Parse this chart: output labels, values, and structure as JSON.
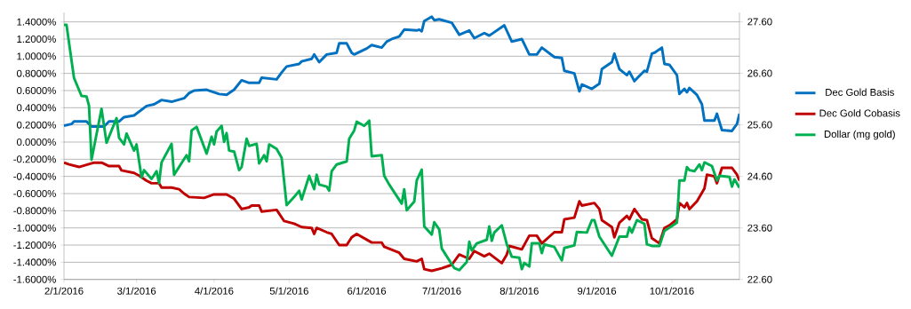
{
  "chart_data": {
    "type": "line",
    "legend": "right",
    "grid": "y",
    "xlim": [
      "2016-02-01",
      "2016-10-28"
    ],
    "xticks": [
      {
        "value": "2016-02-01",
        "label": "2/1/2016"
      },
      {
        "value": "2016-03-01",
        "label": "3/1/2016"
      },
      {
        "value": "2016-04-01",
        "label": "4/1/2016"
      },
      {
        "value": "2016-05-01",
        "label": "5/1/2016"
      },
      {
        "value": "2016-06-01",
        "label": "6/1/2016"
      },
      {
        "value": "2016-07-01",
        "label": "7/1/2016"
      },
      {
        "value": "2016-08-01",
        "label": "8/1/2016"
      },
      {
        "value": "2016-09-01",
        "label": "9/1/2016"
      },
      {
        "value": "2016-10-01",
        "label": "10/1/2016"
      }
    ],
    "ylim": [
      -1.6,
      1.51
    ],
    "yticks": [
      {
        "value": -1.6,
        "label": "-1.6000%"
      },
      {
        "value": -1.4,
        "label": "-1.4000%"
      },
      {
        "value": -1.2,
        "label": "-1.2000%"
      },
      {
        "value": -1.0,
        "label": "-1.0000%"
      },
      {
        "value": -0.8,
        "label": "-0.8000%"
      },
      {
        "value": -0.6,
        "label": "-0.6000%"
      },
      {
        "value": -0.4,
        "label": "-0.4000%"
      },
      {
        "value": -0.2,
        "label": "-0.2000%"
      },
      {
        "value": 0,
        "label": "0.0000%"
      },
      {
        "value": 0.2,
        "label": "0.2000%"
      },
      {
        "value": 0.4,
        "label": "0.4000%"
      },
      {
        "value": 0.6,
        "label": "0.6000%"
      },
      {
        "value": 0.8,
        "label": "0.8000%"
      },
      {
        "value": 1.0,
        "label": "1.0000%"
      },
      {
        "value": 1.2,
        "label": "1.2000%"
      },
      {
        "value": 1.4,
        "label": "1.4000%"
      }
    ],
    "y2lim": [
      22.6,
      27.78
    ],
    "y2ticks": [
      {
        "value": 22.6,
        "label": "22.60"
      },
      {
        "value": 23.6,
        "label": "23.60"
      },
      {
        "value": 24.6,
        "label": "24.60"
      },
      {
        "value": 25.6,
        "label": "25.60"
      },
      {
        "value": 26.6,
        "label": "26.60"
      },
      {
        "value": 27.6,
        "label": "27.60"
      }
    ],
    "series": [
      {
        "name": "Dec Gold Basis",
        "color": "#0070c0",
        "x": [
          "2016-02-01",
          "2016-02-04",
          "2016-02-05",
          "2016-02-10",
          "2016-02-12",
          "2016-02-17",
          "2016-02-19",
          "2016-02-23",
          "2016-02-25",
          "2016-02-29",
          "2016-03-05",
          "2016-03-08",
          "2016-03-11",
          "2016-03-15",
          "2016-03-20",
          "2016-03-22",
          "2016-03-24",
          "2016-03-29",
          "2016-04-03",
          "2016-04-06",
          "2016-04-09",
          "2016-04-12",
          "2016-04-15",
          "2016-04-19",
          "2016-04-20",
          "2016-04-26",
          "2016-04-28",
          "2016-04-30",
          "2016-05-05",
          "2016-05-06",
          "2016-05-10",
          "2016-05-11",
          "2016-05-13",
          "2016-05-16",
          "2016-05-20",
          "2016-05-21",
          "2016-05-24",
          "2016-05-26",
          "2016-05-27",
          "2016-06-01",
          "2016-06-03",
          "2016-06-07",
          "2016-06-09",
          "2016-06-11",
          "2016-06-14",
          "2016-06-16",
          "2016-06-21",
          "2016-06-22",
          "2016-06-23",
          "2016-06-24",
          "2016-06-27",
          "2016-06-28",
          "2016-06-30",
          "2016-07-05",
          "2016-07-08",
          "2016-07-12",
          "2016-07-14",
          "2016-07-18",
          "2016-07-20",
          "2016-07-26",
          "2016-07-29",
          "2016-08-02",
          "2016-08-05",
          "2016-08-08",
          "2016-08-10",
          "2016-08-15",
          "2016-08-18",
          "2016-08-19",
          "2016-08-23",
          "2016-08-25",
          "2016-08-26",
          "2016-08-30",
          "2016-09-02",
          "2016-09-03",
          "2016-09-07",
          "2016-09-08",
          "2016-09-10",
          "2016-09-13",
          "2016-09-14",
          "2016-09-16",
          "2016-09-20",
          "2016-09-21",
          "2016-09-23",
          "2016-09-24",
          "2016-09-27",
          "2016-09-28",
          "2016-09-30",
          "2016-10-03",
          "2016-10-04",
          "2016-10-06",
          "2016-10-07",
          "2016-10-08",
          "2016-10-11",
          "2016-10-13",
          "2016-10-14",
          "2016-10-18",
          "2016-10-19",
          "2016-10-21",
          "2016-10-25",
          "2016-10-27",
          "2016-10-28"
        ],
        "values": [
          0.19,
          0.21,
          0.24,
          0.24,
          0.18,
          0.18,
          0.24,
          0.24,
          0.29,
          0.31,
          0.42,
          0.44,
          0.49,
          0.47,
          0.51,
          0.57,
          0.6,
          0.61,
          0.56,
          0.55,
          0.61,
          0.72,
          0.69,
          0.69,
          0.75,
          0.73,
          0.81,
          0.88,
          0.91,
          0.94,
          0.97,
          1.02,
          0.93,
          1.02,
          1.04,
          1.15,
          1.15,
          1.04,
          1.02,
          1.09,
          1.13,
          1.1,
          1.17,
          1.2,
          1.23,
          1.31,
          1.3,
          1.31,
          1.29,
          1.41,
          1.46,
          1.42,
          1.43,
          1.39,
          1.25,
          1.3,
          1.21,
          1.27,
          1.24,
          1.36,
          1.17,
          1.2,
          1.02,
          1.02,
          1.1,
          0.99,
          0.98,
          0.83,
          0.8,
          0.59,
          0.67,
          0.62,
          0.68,
          0.85,
          0.93,
          1.03,
          0.85,
          0.78,
          0.82,
          0.71,
          0.83,
          0.82,
          1.03,
          1.04,
          1.1,
          0.91,
          0.9,
          0.78,
          0.56,
          0.62,
          0.58,
          0.63,
          0.55,
          0.44,
          0.25,
          0.25,
          0.33,
          0.14,
          0.13,
          0.21,
          0.33
        ]
      },
      {
        "name": "Dec Gold Cobasis",
        "color": "#c00000",
        "x": [
          "2016-02-01",
          "2016-02-03",
          "2016-02-07",
          "2016-02-13",
          "2016-02-16",
          "2016-02-19",
          "2016-02-23",
          "2016-02-24",
          "2016-02-29",
          "2016-03-02",
          "2016-03-05",
          "2016-03-07",
          "2016-03-10",
          "2016-03-11",
          "2016-03-15",
          "2016-03-18",
          "2016-03-20",
          "2016-03-22",
          "2016-03-28",
          "2016-04-01",
          "2016-04-06",
          "2016-04-09",
          "2016-04-12",
          "2016-04-15",
          "2016-04-16",
          "2016-04-19",
          "2016-04-20",
          "2016-04-26",
          "2016-04-29",
          "2016-05-03",
          "2016-05-06",
          "2016-05-10",
          "2016-05-11",
          "2016-05-12",
          "2016-05-16",
          "2016-05-18",
          "2016-05-21",
          "2016-05-24",
          "2016-05-26",
          "2016-05-28",
          "2016-06-03",
          "2016-06-07",
          "2016-06-08",
          "2016-06-14",
          "2016-06-16",
          "2016-06-21",
          "2016-06-23",
          "2016-06-24",
          "2016-06-27",
          "2016-07-01",
          "2016-07-05",
          "2016-07-08",
          "2016-07-12",
          "2016-07-14",
          "2016-07-18",
          "2016-07-20",
          "2016-07-25",
          "2016-07-27",
          "2016-07-28",
          "2016-08-02",
          "2016-08-05",
          "2016-08-08",
          "2016-08-10",
          "2016-08-15",
          "2016-08-18",
          "2016-08-19",
          "2016-08-23",
          "2016-08-25",
          "2016-08-26",
          "2016-08-31",
          "2016-09-02",
          "2016-09-03",
          "2016-09-07",
          "2016-09-08",
          "2016-09-10",
          "2016-09-13",
          "2016-09-14",
          "2016-09-16",
          "2016-09-19",
          "2016-09-21",
          "2016-09-23",
          "2016-09-26",
          "2016-09-28",
          "2016-09-30",
          "2016-10-03",
          "2016-10-04",
          "2016-10-06",
          "2016-10-07",
          "2016-10-08",
          "2016-10-11",
          "2016-10-14",
          "2016-10-15",
          "2016-10-18",
          "2016-10-19",
          "2016-10-21",
          "2016-10-25",
          "2016-10-27",
          "2016-10-28"
        ],
        "values": [
          -0.24,
          -0.26,
          -0.29,
          -0.24,
          -0.24,
          -0.28,
          -0.28,
          -0.33,
          -0.36,
          -0.39,
          -0.45,
          -0.48,
          -0.48,
          -0.53,
          -0.53,
          -0.55,
          -0.6,
          -0.64,
          -0.65,
          -0.61,
          -0.61,
          -0.66,
          -0.78,
          -0.76,
          -0.74,
          -0.74,
          -0.81,
          -0.79,
          -0.92,
          -0.95,
          -0.99,
          -1.0,
          -1.07,
          -1.0,
          -1.05,
          -1.07,
          -1.2,
          -1.2,
          -1.11,
          -1.07,
          -1.17,
          -1.17,
          -1.22,
          -1.29,
          -1.36,
          -1.39,
          -1.36,
          -1.48,
          -1.5,
          -1.47,
          -1.43,
          -1.31,
          -1.36,
          -1.27,
          -1.33,
          -1.3,
          -1.41,
          -1.31,
          -1.21,
          -1.25,
          -1.09,
          -1.09,
          -1.18,
          -1.05,
          -1.05,
          -0.9,
          -0.88,
          -0.69,
          -0.74,
          -0.71,
          -0.78,
          -0.91,
          -0.99,
          -1.11,
          -0.94,
          -0.86,
          -0.9,
          -0.78,
          -0.9,
          -0.91,
          -1.12,
          -1.18,
          -1.0,
          -0.97,
          -0.9,
          -0.71,
          -0.76,
          -0.71,
          -0.78,
          -0.69,
          -0.54,
          -0.38,
          -0.4,
          -0.48,
          -0.3,
          -0.3,
          -0.38,
          -0.45
        ]
      },
      {
        "name": "Dollar (mg gold)",
        "color": "#00b050",
        "axis": "y2",
        "x": [
          "2016-02-01",
          "2016-02-02",
          "2016-02-05",
          "2016-02-08",
          "2016-02-10",
          "2016-02-11",
          "2016-02-12",
          "2016-02-16",
          "2016-02-18",
          "2016-02-22",
          "2016-02-23",
          "2016-02-25",
          "2016-02-26",
          "2016-02-29",
          "2016-03-01",
          "2016-03-03",
          "2016-03-04",
          "2016-03-07",
          "2016-03-09",
          "2016-03-10",
          "2016-03-11",
          "2016-03-15",
          "2016-03-16",
          "2016-03-21",
          "2016-03-22",
          "2016-03-23",
          "2016-03-25",
          "2016-03-29",
          "2016-03-31",
          "2016-04-01",
          "2016-04-02",
          "2016-04-04",
          "2016-04-05",
          "2016-04-06",
          "2016-04-07",
          "2016-04-09",
          "2016-04-11",
          "2016-04-12",
          "2016-04-14",
          "2016-04-15",
          "2016-04-18",
          "2016-04-19",
          "2016-04-21",
          "2016-04-22",
          "2016-04-23",
          "2016-04-26",
          "2016-04-28",
          "2016-04-30",
          "2016-05-03",
          "2016-05-05",
          "2016-05-06",
          "2016-05-09",
          "2016-05-11",
          "2016-05-12",
          "2016-05-13",
          "2016-05-16",
          "2016-05-17",
          "2016-05-18",
          "2016-05-20",
          "2016-05-24",
          "2016-05-25",
          "2016-05-27",
          "2016-05-28",
          "2016-05-31",
          "2016-06-02",
          "2016-06-03",
          "2016-06-07",
          "2016-06-08",
          "2016-06-10",
          "2016-06-15",
          "2016-06-16",
          "2016-06-17",
          "2016-06-20",
          "2016-06-21",
          "2016-06-23",
          "2016-06-24",
          "2016-06-27",
          "2016-06-28",
          "2016-06-30",
          "2016-07-01",
          "2016-07-06",
          "2016-07-08",
          "2016-07-11",
          "2016-07-12",
          "2016-07-13",
          "2016-07-15",
          "2016-07-19",
          "2016-07-20",
          "2016-07-21",
          "2016-07-22",
          "2016-07-25",
          "2016-07-27",
          "2016-07-29",
          "2016-08-01",
          "2016-08-02",
          "2016-08-03",
          "2016-08-05",
          "2016-08-06",
          "2016-08-09",
          "2016-08-10",
          "2016-08-11",
          "2016-08-15",
          "2016-08-18",
          "2016-08-19",
          "2016-08-23",
          "2016-08-24",
          "2016-08-28",
          "2016-08-30",
          "2016-08-31",
          "2016-09-02",
          "2016-09-07",
          "2016-09-10",
          "2016-09-13",
          "2016-09-14",
          "2016-09-15",
          "2016-09-17",
          "2016-09-20",
          "2016-09-21",
          "2016-09-23",
          "2016-09-26",
          "2016-09-28",
          "2016-10-03",
          "2016-10-04",
          "2016-10-06",
          "2016-10-07",
          "2016-10-08",
          "2016-10-10",
          "2016-10-12",
          "2016-10-13",
          "2016-10-14",
          "2016-10-17",
          "2016-10-19",
          "2016-10-20",
          "2016-10-24",
          "2016-10-25",
          "2016-10-26",
          "2016-10-28"
        ],
        "values": [
          27.54,
          27.54,
          26.51,
          26.16,
          26.15,
          25.97,
          24.92,
          25.91,
          25.25,
          25.73,
          25.35,
          25.22,
          25.43,
          25.1,
          25.22,
          24.58,
          24.72,
          24.55,
          24.7,
          24.47,
          24.87,
          25.23,
          24.63,
          25.01,
          24.89,
          25.49,
          25.56,
          25.04,
          25.37,
          25.22,
          25.47,
          25.58,
          25.27,
          25.44,
          25.1,
          25.08,
          24.72,
          24.78,
          25.33,
          25.19,
          25.23,
          24.85,
          25.01,
          24.89,
          25.22,
          25.13,
          24.96,
          24.04,
          24.2,
          24.32,
          24.15,
          24.61,
          24.35,
          24.63,
          24.44,
          24.4,
          24.32,
          24.7,
          24.83,
          24.89,
          25.33,
          25.49,
          25.66,
          25.58,
          25.68,
          24.99,
          25.01,
          24.61,
          24.44,
          24.07,
          24.35,
          23.94,
          24.11,
          24.52,
          24.73,
          23.63,
          23.47,
          23.71,
          23.57,
          23.2,
          22.82,
          22.78,
          22.94,
          23.33,
          23.16,
          23.3,
          23.37,
          23.63,
          23.35,
          23.51,
          23.65,
          23.28,
          23.04,
          23.02,
          22.8,
          22.92,
          22.85,
          23.3,
          23.3,
          23.11,
          23.28,
          23.23,
          22.97,
          23.21,
          23.26,
          23.52,
          23.51,
          23.75,
          23.75,
          23.43,
          23.06,
          23.43,
          23.43,
          23.61,
          23.51,
          23.75,
          23.68,
          23.28,
          23.25,
          23.25,
          23.54,
          23.7,
          24.52,
          24.52,
          24.78,
          24.72,
          24.7,
          24.83,
          24.72,
          24.87,
          24.8,
          24.52,
          24.61,
          24.59,
          24.4,
          24.54,
          24.38
        ]
      }
    ]
  }
}
